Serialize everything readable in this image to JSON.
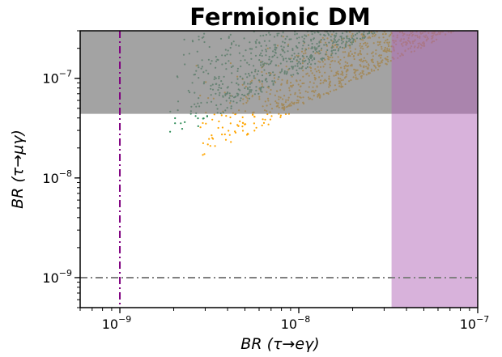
{
  "chart_data": {
    "type": "scatter",
    "title": "Fermionic DM",
    "xlabel": "BR (τ→eγ)",
    "ylabel": "BR (τ→μγ)",
    "x_scale": "log",
    "y_scale": "log",
    "xlim": [
      6e-10,
      1e-07
    ],
    "ylim": [
      5e-10,
      3e-07
    ],
    "x_ticks": [
      {
        "value": 1e-09,
        "label": "10",
        "exp": "−9"
      },
      {
        "value": 1e-08,
        "label": "10",
        "exp": "−8"
      },
      {
        "value": 1e-07,
        "label": "10",
        "exp": "−7"
      }
    ],
    "y_ticks": [
      {
        "value": 1e-09,
        "label": "10",
        "exp": "−9"
      },
      {
        "value": 1e-08,
        "label": "10",
        "exp": "−8"
      },
      {
        "value": 1e-07,
        "label": "10",
        "exp": "−7"
      }
    ],
    "grid": false,
    "excluded_regions": [
      {
        "name": "",
        "axis": "y",
        "from": 4.4e-08,
        "to": 3e-07,
        "color": "#808080",
        "opacity": 0.72
      },
      {
        "name": "",
        "axis": "x",
        "from": 3.3e-08,
        "to": 1e-07,
        "color": "#b266b8",
        "opacity": 0.5
      }
    ],
    "reference_lines": [
      {
        "axis": "x",
        "value": 1e-09,
        "style": "dashdot",
        "color": "#800080"
      },
      {
        "axis": "y",
        "value": 1e-09,
        "style": "dashdot",
        "color": "#808080"
      }
    ],
    "series": [
      {
        "color": "#ffa500",
        "band": {
          "x_min": 2.5e-09,
          "x_max": 1.1e-07,
          "y_at_low_edge": 1.4e-08,
          "slope": 0.9
        }
      },
      {
        "color": "#2e8b57",
        "band": {
          "x_min": 1.8e-09,
          "x_max": 3.5e-08,
          "y_at_low_edge": 2.2e-08,
          "slope": 0.95
        }
      }
    ]
  }
}
